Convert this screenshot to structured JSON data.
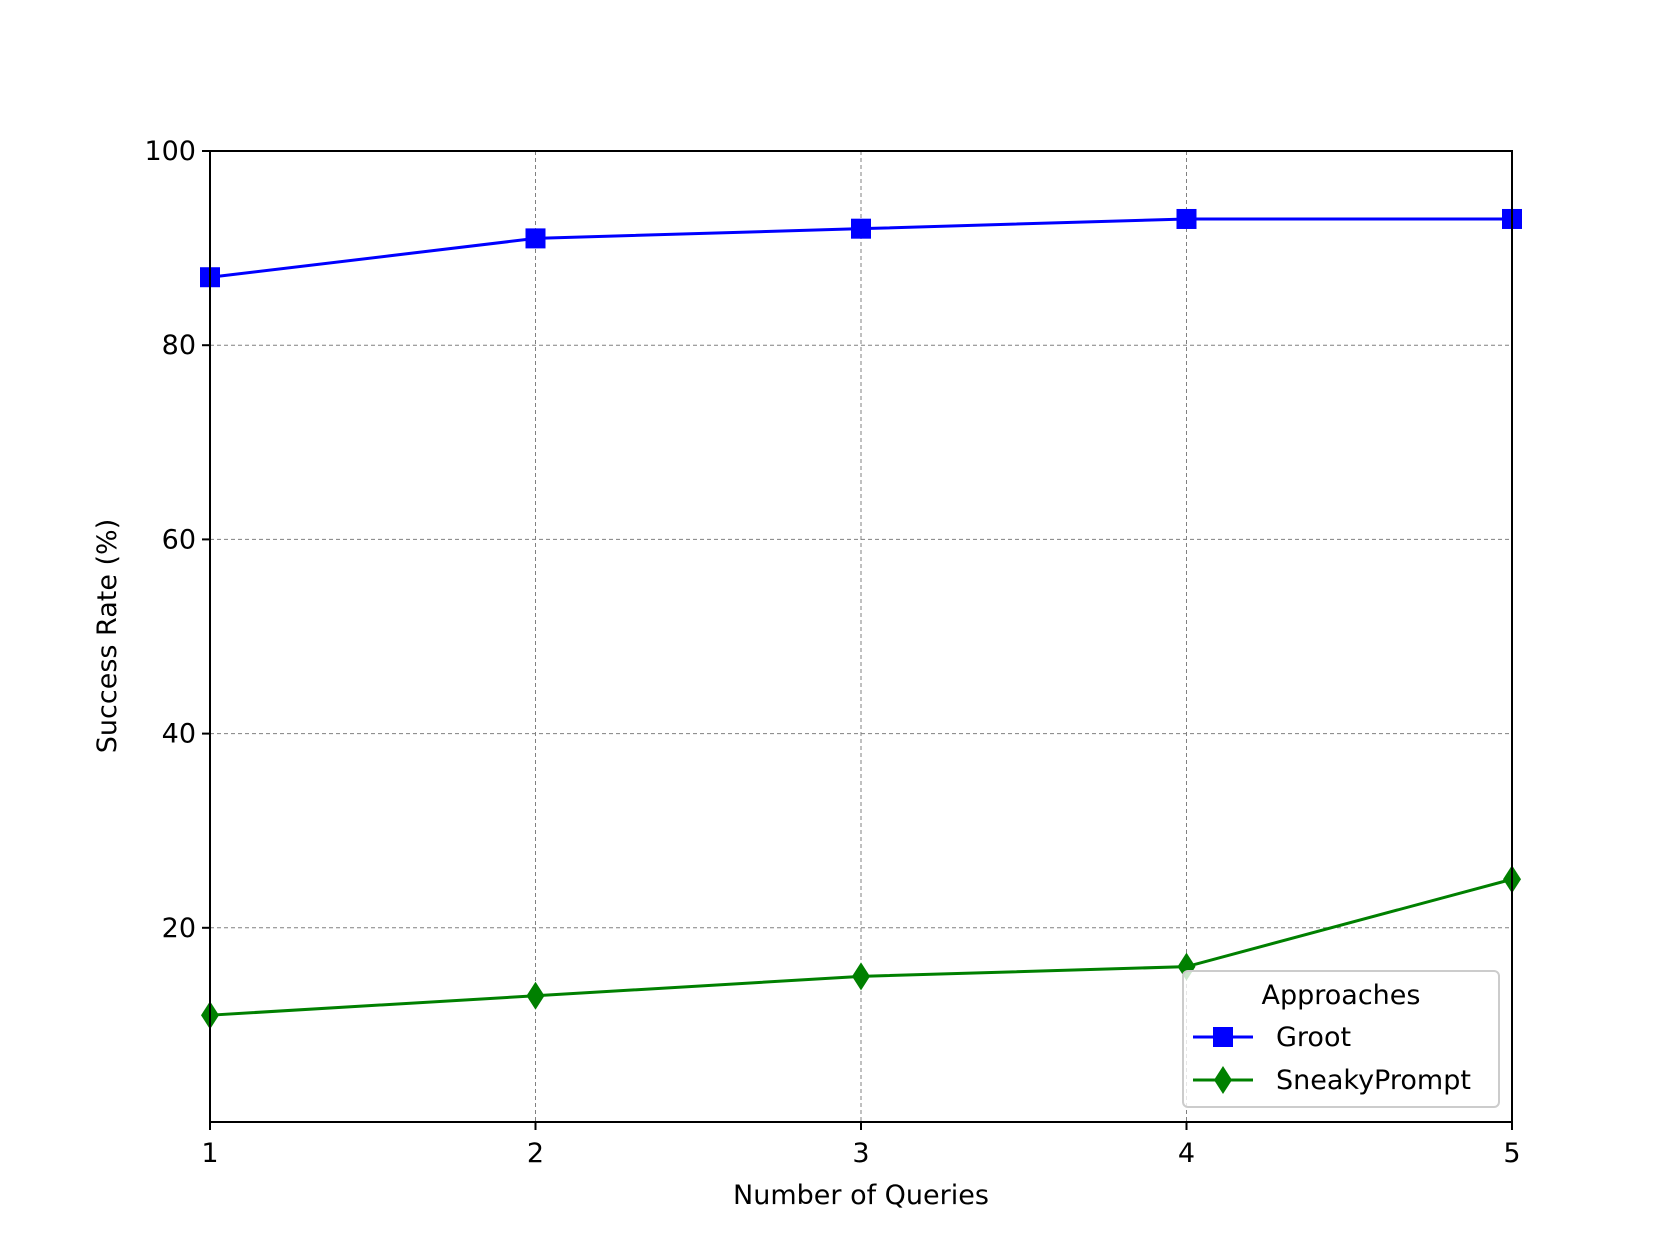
{
  "chart_data": {
    "type": "line",
    "title": "",
    "xlabel": "Number of Queries",
    "ylabel": "Success Rate (%)",
    "x": [
      1,
      2,
      3,
      4,
      5
    ],
    "xlim": [
      1,
      5
    ],
    "ylim": [
      0,
      100
    ],
    "xticks": [
      "1",
      "2",
      "3",
      "4",
      "5"
    ],
    "yticks": [
      "20",
      "40",
      "60",
      "80",
      "100"
    ],
    "grid": true,
    "legend": {
      "title": "Approaches",
      "placement": "lower-right"
    },
    "series": [
      {
        "name": "Groot",
        "values": [
          87,
          91,
          92,
          93,
          93
        ],
        "color": "#0000ff",
        "marker": "square"
      },
      {
        "name": "SneakyPrompt",
        "values": [
          11,
          13,
          15,
          16,
          25
        ],
        "color": "#008000",
        "marker": "diamond"
      }
    ]
  }
}
